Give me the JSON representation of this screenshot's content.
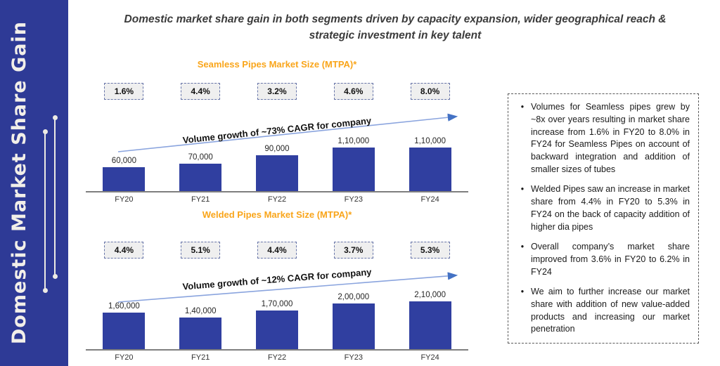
{
  "sidebar": {
    "title": "Domestic Market Share Gain",
    "bg_color": "#2E3A96",
    "text_color": "#F2EFE9"
  },
  "header": {
    "title": "Domestic market share gain in both segments driven by capacity expansion, wider geographical reach & strategic investment in key talent"
  },
  "chart_data": [
    {
      "type": "bar",
      "title": "Seamless Pipes Market Size (MTPA)*",
      "categories": [
        "FY20",
        "FY21",
        "FY22",
        "FY23",
        "FY24"
      ],
      "values": [
        60000,
        70000,
        90000,
        110000,
        110000
      ],
      "value_labels": [
        "60,000",
        "70,000",
        "90,000",
        "1,10,000",
        "1,10,000"
      ],
      "market_share_badges": [
        "1.6%",
        "4.4%",
        "3.2%",
        "4.6%",
        "8.0%"
      ],
      "growth_annotation": "Volume growth of ~73% CAGR for company",
      "bar_color": "#303FA0",
      "ylim": [
        0,
        120000
      ],
      "grid": false,
      "legend": false
    },
    {
      "type": "bar",
      "title": "Welded Pipes Market Size (MTPA)*",
      "categories": [
        "FY20",
        "FY21",
        "FY22",
        "FY23",
        "FY24"
      ],
      "values": [
        160000,
        140000,
        170000,
        200000,
        210000
      ],
      "value_labels": [
        "1,60,000",
        "1,40,000",
        "1,70,000",
        "2,00,000",
        "2,10,000"
      ],
      "market_share_badges": [
        "4.4%",
        "5.1%",
        "4.4%",
        "3.7%",
        "5.3%"
      ],
      "growth_annotation": "Volume growth of ~12% CAGR for company",
      "bar_color": "#303FA0",
      "ylim": [
        0,
        220000
      ],
      "grid": false,
      "legend": false
    }
  ],
  "notes": {
    "bullets": [
      "Volumes for Seamless pipes grew by ~8x over years resulting in market share increase from 1.6% in FY20 to 8.0% in FY24 for Seamless Pipes on account of backward integration and addition of smaller sizes of tubes",
      "Welded Pipes saw an increase in market share from 4.4% in FY20 to 5.3% in FY24 on the back of capacity addition of higher dia pipes",
      "Overall company’s market share improved from 3.6% in FY20 to 6.2% in FY24",
      "We aim to further increase our market share with addition of new value-added products and increasing our market penetration"
    ]
  },
  "colors": {
    "sidebar_blue": "#2E3A96",
    "bar_blue": "#303FA0",
    "chart_title_orange": "#F9A51A",
    "arrow_blue": "#4472C4",
    "arrow_line_blue": "#8AA4DE",
    "axis_gray": "#7F7F7F",
    "badge_fill": "#EFEFEF",
    "badge_border": "#6674A8"
  }
}
